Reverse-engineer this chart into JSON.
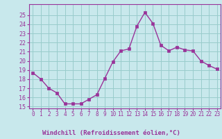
{
  "x": [
    0,
    1,
    2,
    3,
    4,
    5,
    6,
    7,
    8,
    9,
    10,
    11,
    12,
    13,
    14,
    15,
    16,
    17,
    18,
    19,
    20,
    21,
    22,
    23
  ],
  "y": [
    18.7,
    18.0,
    17.0,
    16.5,
    15.3,
    15.3,
    15.3,
    15.8,
    16.3,
    18.1,
    19.9,
    21.1,
    21.3,
    23.8,
    25.3,
    24.1,
    21.7,
    21.1,
    21.5,
    21.2,
    21.1,
    20.0,
    19.5,
    19.1
  ],
  "line_color": "#993399",
  "marker_color": "#993399",
  "bg_color": "#c8e8ec",
  "grid_color": "#99cccc",
  "xlabel": "Windchill (Refroidissement éolien,°C)",
  "ylim_low": 14.8,
  "ylim_high": 26.2,
  "xlim_low": -0.5,
  "xlim_high": 23.5,
  "yticks": [
    15,
    16,
    17,
    18,
    19,
    20,
    21,
    22,
    23,
    24,
    25
  ],
  "xticks": [
    0,
    1,
    2,
    3,
    4,
    5,
    6,
    7,
    8,
    9,
    10,
    11,
    12,
    13,
    14,
    15,
    16,
    17,
    18,
    19,
    20,
    21,
    22,
    23
  ],
  "tick_label_color": "#993399",
  "spine_color": "#993399",
  "xlabel_color": "#993399"
}
